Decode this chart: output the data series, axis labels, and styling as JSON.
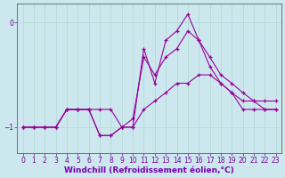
{
  "background_color": "#cce8ee",
  "grid_color": "#b0d8d0",
  "line_color": "#990099",
  "xlabel": "Windchill (Refroidissement éolien,°C)",
  "xlabel_color": "#7700aa",
  "yticks": [
    0,
    -1
  ],
  "xticks": [
    0,
    1,
    2,
    3,
    4,
    5,
    6,
    7,
    8,
    9,
    10,
    11,
    12,
    13,
    14,
    15,
    16,
    17,
    18,
    19,
    20,
    21,
    22,
    23
  ],
  "ylim": [
    -1.25,
    0.18
  ],
  "xlim": [
    -0.5,
    23.5
  ],
  "series1_x": [
    0,
    1,
    2,
    3,
    4,
    5,
    6,
    7,
    8,
    9,
    10,
    11,
    12,
    13,
    14,
    15,
    16,
    17,
    18,
    19,
    20,
    21,
    22,
    23
  ],
  "series1_y": [
    -1.0,
    -1.0,
    -1.0,
    -1.0,
    -0.83,
    -0.83,
    -0.83,
    -0.83,
    -0.83,
    -1.0,
    -1.0,
    -0.83,
    -0.75,
    -0.67,
    -0.58,
    -0.58,
    -0.5,
    -0.5,
    -0.58,
    -0.67,
    -0.75,
    -0.75,
    -0.75,
    -0.75
  ],
  "series2_x": [
    0,
    1,
    2,
    3,
    4,
    5,
    6,
    7,
    8,
    9,
    10,
    11,
    12,
    13,
    14,
    15,
    16,
    17,
    18,
    19,
    20,
    21,
    22,
    23
  ],
  "series2_y": [
    -1.0,
    -1.0,
    -1.0,
    -1.0,
    -0.83,
    -0.83,
    -0.83,
    -1.08,
    -1.08,
    -1.0,
    -1.0,
    -0.25,
    -0.58,
    -0.17,
    -0.08,
    0.08,
    -0.17,
    -0.42,
    -0.58,
    -0.67,
    -0.83,
    -0.83,
    -0.83,
    -0.83
  ],
  "series3_x": [
    0,
    1,
    2,
    3,
    4,
    5,
    6,
    7,
    8,
    9,
    10,
    11,
    12,
    13,
    14,
    15,
    16,
    17,
    18,
    19,
    20,
    21,
    22,
    23
  ],
  "series3_y": [
    -1.0,
    -1.0,
    -1.0,
    -1.0,
    -0.83,
    -0.83,
    -0.83,
    -1.08,
    -1.08,
    -1.0,
    -0.92,
    -0.33,
    -0.5,
    -0.33,
    -0.25,
    -0.08,
    -0.17,
    -0.33,
    -0.5,
    -0.58,
    -0.67,
    -0.75,
    -0.83,
    -0.83
  ],
  "tick_fontsize": 5.5,
  "xlabel_fontsize": 6.5,
  "tick_color": "#770099",
  "axis_color": "#770099",
  "spine_color": "#556655",
  "figsize": [
    3.2,
    2.0
  ],
  "dpi": 100
}
